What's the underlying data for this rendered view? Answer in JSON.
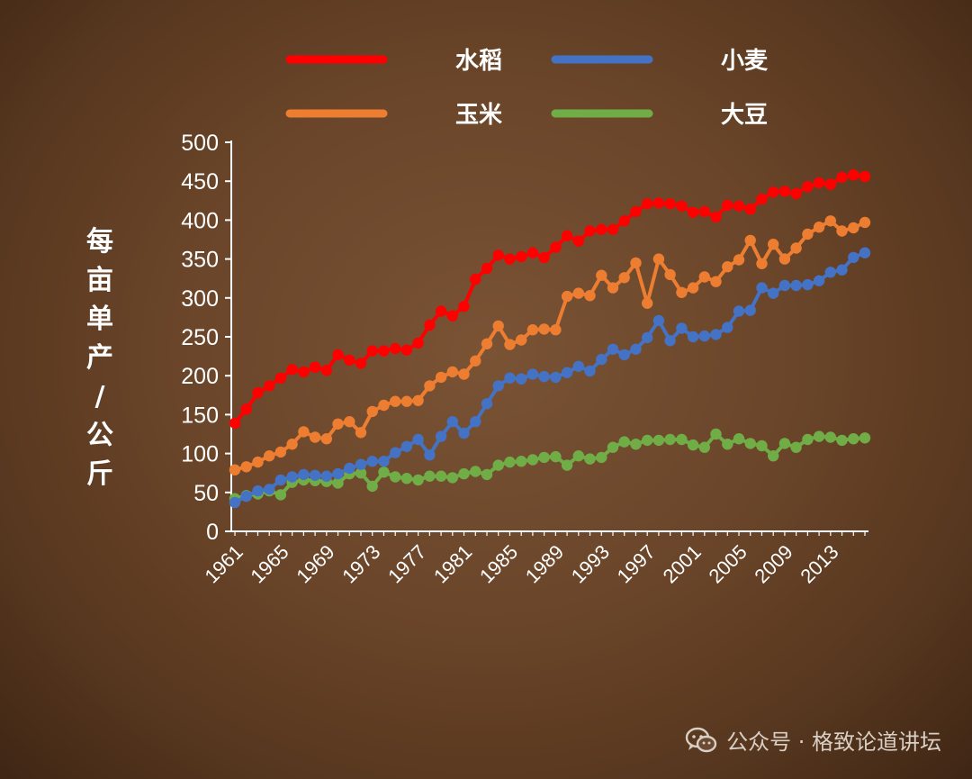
{
  "watermark": {
    "text": "公众号 · 格致论道讲坛",
    "icon": "wechat-icon"
  },
  "chart_data": {
    "type": "line",
    "title": "",
    "xlabel": "",
    "ylabel": "每亩单产 / 公斤",
    "ylim": [
      0,
      500
    ],
    "yticks": [
      0,
      50,
      100,
      150,
      200,
      250,
      300,
      350,
      400,
      450,
      500
    ],
    "xticks": [
      "1961",
      "1965",
      "1969",
      "1973",
      "1977",
      "1981",
      "1985",
      "1989",
      "1993",
      "1997",
      "2001",
      "2005",
      "2009",
      "2013"
    ],
    "x": [
      1961,
      1962,
      1963,
      1964,
      1965,
      1966,
      1967,
      1968,
      1969,
      1970,
      1971,
      1972,
      1973,
      1974,
      1975,
      1976,
      1977,
      1978,
      1979,
      1980,
      1981,
      1982,
      1983,
      1984,
      1985,
      1986,
      1987,
      1988,
      1989,
      1990,
      1991,
      1992,
      1993,
      1994,
      1995,
      1996,
      1997,
      1998,
      1999,
      2000,
      2001,
      2002,
      2003,
      2004,
      2005,
      2006,
      2007,
      2008,
      2009,
      2010,
      2011,
      2012,
      2013,
      2014,
      2015,
      2016
    ],
    "legend_position": "top",
    "grid": false,
    "series": [
      {
        "name": "水稻",
        "color": "#ff0000",
        "values": [
          139,
          157,
          178,
          187,
          197,
          208,
          205,
          211,
          207,
          227,
          220,
          216,
          232,
          232,
          235,
          233,
          242,
          265,
          283,
          277,
          289,
          324,
          338,
          355,
          350,
          353,
          358,
          352,
          365,
          380,
          373,
          386,
          388,
          388,
          399,
          411,
          421,
          422,
          421,
          418,
          410,
          411,
          404,
          419,
          418,
          414,
          427,
          436,
          437,
          434,
          443,
          448,
          446,
          455,
          458,
          456
        ]
      },
      {
        "name": "小麦",
        "color": "#4472c4",
        "values": [
          37,
          45,
          52,
          54,
          66,
          70,
          73,
          72,
          71,
          74,
          81,
          86,
          90,
          90,
          101,
          109,
          118,
          98,
          122,
          141,
          126,
          141,
          164,
          187,
          197,
          196,
          202,
          199,
          198,
          204,
          212,
          206,
          221,
          234,
          227,
          234,
          249,
          271,
          245,
          261,
          250,
          251,
          253,
          262,
          283,
          284,
          313,
          306,
          316,
          316,
          317,
          322,
          333,
          336,
          352,
          358
        ]
      },
      {
        "name": "玉米",
        "color": "#ed7d31",
        "values": [
          79,
          83,
          89,
          97,
          102,
          112,
          128,
          121,
          119,
          138,
          141,
          127,
          154,
          162,
          167,
          167,
          168,
          187,
          198,
          205,
          202,
          219,
          241,
          264,
          240,
          246,
          259,
          260,
          259,
          302,
          306,
          303,
          329,
          313,
          326,
          345,
          293,
          350,
          330,
          307,
          313,
          327,
          321,
          340,
          349,
          374,
          344,
          369,
          350,
          364,
          382,
          391,
          399,
          386,
          390,
          397
        ]
      },
      {
        "name": "大豆",
        "color": "#70ad47",
        "values": [
          42,
          46,
          48,
          52,
          47,
          63,
          66,
          65,
          64,
          62,
          74,
          75,
          58,
          76,
          70,
          68,
          66,
          71,
          71,
          69,
          74,
          77,
          73,
          85,
          89,
          90,
          92,
          95,
          96,
          85,
          97,
          93,
          95,
          108,
          115,
          112,
          117,
          117,
          118,
          118,
          111,
          108,
          125,
          112,
          119,
          113,
          110,
          97,
          113,
          108,
          118,
          122,
          121,
          117,
          119,
          120
        ]
      }
    ]
  }
}
